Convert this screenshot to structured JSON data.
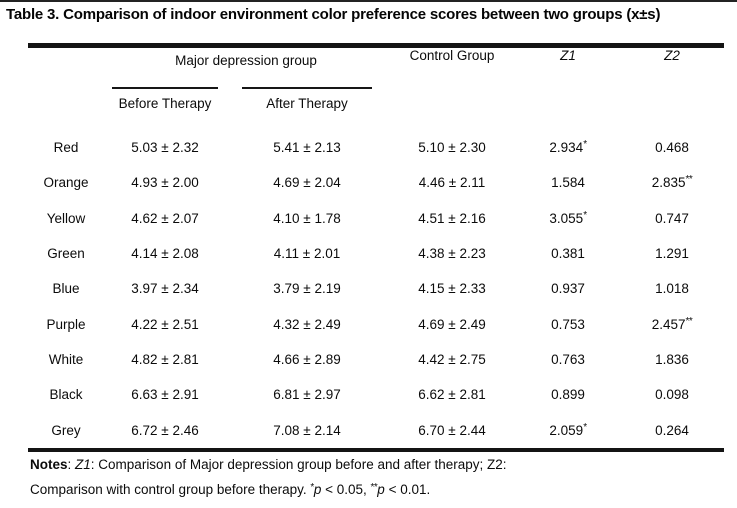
{
  "page": {
    "title": "Table 3. Comparison of indoor environment color preference scores between two groups (x±s)"
  },
  "table": {
    "header": {
      "group": "Major depression group",
      "before": "Before Therapy",
      "after": "After Therapy",
      "control": "Control Group",
      "z1": "Z1",
      "z2": "Z2"
    },
    "rows": [
      {
        "color": "Red",
        "before": "5.03 ± 2.32",
        "after": "5.41 ± 2.13",
        "control": "5.10 ± 2.30",
        "z1": "2.934",
        "z1_mark": "*",
        "z2": "0.468",
        "z2_mark": ""
      },
      {
        "color": "Orange",
        "before": "4.93 ± 2.00",
        "after": "4.69 ± 2.04",
        "control": "4.46 ± 2.11",
        "z1": "1.584",
        "z1_mark": "",
        "z2": "2.835",
        "z2_mark": "**"
      },
      {
        "color": "Yellow",
        "before": "4.62 ± 2.07",
        "after": "4.10 ± 1.78",
        "control": "4.51 ± 2.16",
        "z1": "3.055",
        "z1_mark": "*",
        "z2": "0.747",
        "z2_mark": ""
      },
      {
        "color": "Green",
        "before": "4.14 ± 2.08",
        "after": "4.11 ± 2.01",
        "control": "4.38 ± 2.23",
        "z1": "0.381",
        "z1_mark": "",
        "z2": "1.291",
        "z2_mark": ""
      },
      {
        "color": "Blue",
        "before": "3.97 ± 2.34",
        "after": "3.79 ± 2.19",
        "control": "4.15 ± 2.33",
        "z1": "0.937",
        "z1_mark": "",
        "z2": "1.018",
        "z2_mark": ""
      },
      {
        "color": "Purple",
        "before": "4.22 ± 2.51",
        "after": "4.32 ± 2.49",
        "control": "4.69 ± 2.49",
        "z1": "0.753",
        "z1_mark": "",
        "z2": "2.457",
        "z2_mark": "**"
      },
      {
        "color": "White",
        "before": "4.82 ± 2.81",
        "after": "4.66 ± 2.89",
        "control": "4.42 ± 2.75",
        "z1": "0.763",
        "z1_mark": "",
        "z2": "1.836",
        "z2_mark": ""
      },
      {
        "color": "Black",
        "before": "6.63 ± 2.91",
        "after": "6.81 ± 2.97",
        "control": "6.62 ± 2.81",
        "z1": "0.899",
        "z1_mark": "",
        "z2": "0.098",
        "z2_mark": ""
      },
      {
        "color": "Grey",
        "before": "6.72 ± 2.46",
        "after": "7.08 ± 2.14",
        "control": "6.70 ± 2.44",
        "z1": "2.059",
        "z1_mark": "*",
        "z2": "0.264",
        "z2_mark": ""
      }
    ]
  },
  "notes": {
    "label": "Notes",
    "sep": ": ",
    "z1_term": "Z1",
    "line1_rest": ": Comparison of Major depression group before and after therapy; Z2:",
    "line2_start": "Comparison with control group before therapy. ",
    "mark1": "*",
    "p1": "p",
    "cond1": " < 0.05, ",
    "mark2": "**",
    "p2": "p",
    "cond2": " < 0.01."
  }
}
